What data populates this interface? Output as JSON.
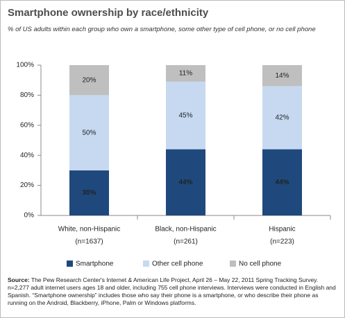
{
  "chart_data": {
    "type": "stacked_bar",
    "title": "Smartphone ownership by race/ethnicity",
    "subtitle": "% of US adults within each group who own a smartphone, some other type of cell phone, or no cell phone",
    "categories": [
      "White, non-Hispanic",
      "Black, non-Hispanic",
      "Hispanic"
    ],
    "category_sublabels": [
      "(n=1637)",
      "(n=261)",
      "(n=223)"
    ],
    "series": [
      {
        "name": "Smartphone",
        "color": "#1f497d",
        "label_color": "#ffffff",
        "values": [
          30,
          44,
          44
        ],
        "value_labels": [
          "30%",
          "44%",
          "44%"
        ]
      },
      {
        "name": "Other cell phone",
        "color": "#c6d9f1",
        "label_color": "#222222",
        "values": [
          50,
          45,
          42
        ],
        "value_labels": [
          "50%",
          "45%",
          "42%"
        ]
      },
      {
        "name": "No cell phone",
        "color": "#bfbfbf",
        "label_color": "#222222",
        "values": [
          20,
          11,
          14
        ],
        "value_labels": [
          "20%",
          "11%",
          "14%"
        ]
      }
    ],
    "ylim": [
      0,
      100
    ],
    "yticks": [
      {
        "value": 0,
        "label": "0%"
      },
      {
        "value": 20,
        "label": "20%"
      },
      {
        "value": 40,
        "label": "40%"
      },
      {
        "value": 60,
        "label": "60%"
      },
      {
        "value": 80,
        "label": "80%"
      },
      {
        "value": 100,
        "label": "100%"
      }
    ],
    "source_label": "Source:",
    "source": "The Pew Research Center's Internet & American Life Project, April 26 – May 22, 2011 Spring Tracking Survey. n=2,277 adult internet users ages 18 and older, including 755 cell phone interviews. Interviews were conducted in English and Spanish. “Smartphone ownership” includes those who say their phone is a smartphone, or who describe their phone as running on the Android, Blackberry, iPhone, Palm or Windows platforms."
  }
}
